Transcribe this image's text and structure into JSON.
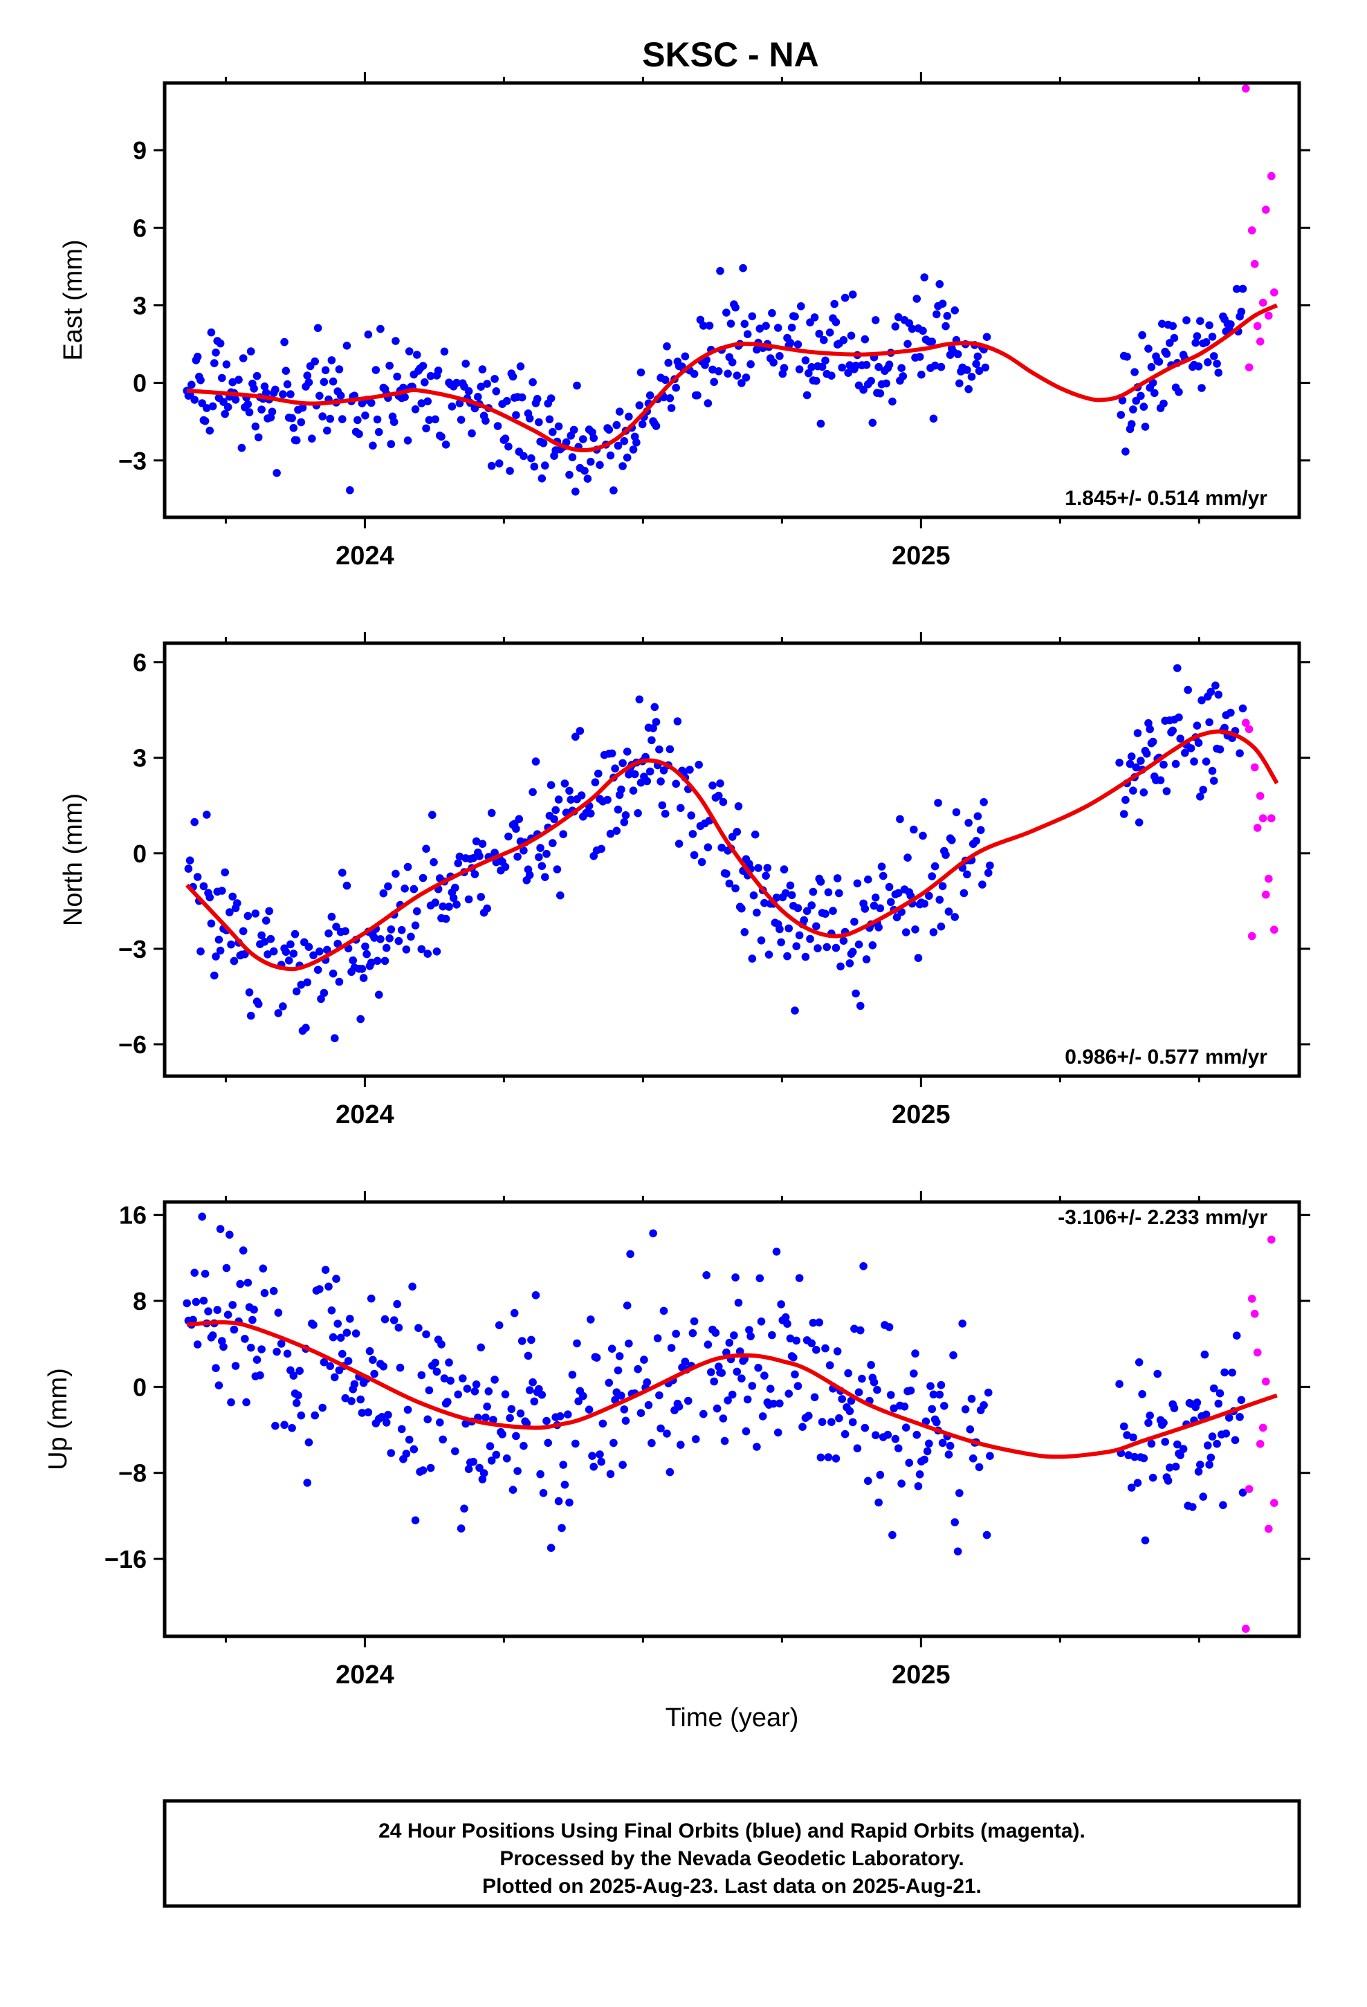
{
  "title": "SKSC - NA",
  "xlabel": "Time (year)",
  "colors": {
    "final": "#0000ff",
    "rapid": "#ff00ff",
    "trend": "#ee0000"
  },
  "footer": {
    "line1": "24 Hour Positions Using Final Orbits (blue) and Rapid Orbits (magenta).",
    "line2": "Processed by the Nevada Geodetic Laboratory.",
    "line3": "Plotted on 2025-Aug-23. Last data on 2025-Aug-21."
  },
  "chart_data": [
    {
      "type": "scatter",
      "panel": "east",
      "ylabel": "East (mm)",
      "rate": "1.845+/- 0.514 mm/yr",
      "xlim": [
        2023.64,
        2025.68
      ],
      "ylim": [
        -5.2,
        11.6
      ],
      "yticks": [
        -3,
        0,
        3,
        6,
        9
      ],
      "yticklabels": [
        "−3",
        "0",
        "3",
        "6",
        "9"
      ],
      "xticks": [
        2024,
        2025
      ],
      "xticklabels": [
        "2024",
        "2025"
      ],
      "minor_xticks": [
        2023.75,
        2024.25,
        2024.5,
        2024.75,
        2025.25,
        2025.5
      ],
      "rapid_x": [
        2025.584,
        2025.59,
        2025.595,
        2025.6,
        2025.605,
        2025.61,
        2025.615,
        2025.62,
        2025.625,
        2025.63,
        2025.635
      ],
      "rapid_y": [
        11.4,
        0.6,
        5.9,
        4.6,
        2.2,
        1.6,
        3.1,
        6.7,
        2.6,
        8.0,
        3.5
      ],
      "trend_x": [
        2023.68,
        2023.8,
        2023.9,
        2024.0,
        2024.06,
        2024.1,
        2024.2,
        2024.3,
        2024.35,
        2024.4,
        2024.45,
        2024.5,
        2024.55,
        2024.6,
        2024.65,
        2024.7,
        2024.8,
        2024.9,
        2025.0,
        2025.05,
        2025.1,
        2025.15,
        2025.2,
        2025.25,
        2025.3,
        2025.33,
        2025.36,
        2025.4,
        2025.45,
        2025.5,
        2025.55,
        2025.6,
        2025.64
      ],
      "trend_y": [
        -0.3,
        -0.5,
        -0.8,
        -0.6,
        -0.4,
        -0.3,
        -0.8,
        -1.8,
        -2.4,
        -2.6,
        -2.2,
        -1.2,
        0.0,
        0.9,
        1.4,
        1.5,
        1.2,
        1.1,
        1.3,
        1.5,
        1.5,
        1.1,
        0.4,
        -0.2,
        -0.6,
        -0.65,
        -0.5,
        0.0,
        0.6,
        1.1,
        1.8,
        2.6,
        3.0
      ]
    },
    {
      "type": "scatter",
      "panel": "north",
      "ylabel": "North (mm)",
      "rate": "0.986+/- 0.577 mm/yr",
      "xlim": [
        2023.64,
        2025.68
      ],
      "ylim": [
        -7.0,
        6.6
      ],
      "yticks": [
        -6,
        -3,
        0,
        3,
        6
      ],
      "yticklabels": [
        "−6",
        "−3",
        "0",
        "3",
        "6"
      ],
      "xticks": [
        2024,
        2025
      ],
      "xticklabels": [
        "2024",
        "2025"
      ],
      "minor_xticks": [
        2023.75,
        2024.25,
        2024.5,
        2024.75,
        2025.25,
        2025.5
      ],
      "rapid_x": [
        2025.584,
        2025.59,
        2025.595,
        2025.6,
        2025.605,
        2025.61,
        2025.615,
        2025.62,
        2025.625,
        2025.63,
        2025.635
      ],
      "rapid_y": [
        4.1,
        3.9,
        -2.6,
        2.7,
        0.8,
        1.8,
        1.1,
        -1.3,
        -0.8,
        1.1,
        -2.4
      ],
      "trend_x": [
        2023.68,
        2023.75,
        2023.8,
        2023.85,
        2023.9,
        2024.0,
        2024.1,
        2024.2,
        2024.3,
        2024.4,
        2024.45,
        2024.5,
        2024.55,
        2024.6,
        2024.65,
        2024.7,
        2024.75,
        2024.8,
        2024.85,
        2024.9,
        2025.0,
        2025.1,
        2025.2,
        2025.3,
        2025.4,
        2025.45,
        2025.5,
        2025.55,
        2025.6,
        2025.64
      ],
      "trend_y": [
        -1.0,
        -2.3,
        -3.2,
        -3.6,
        -3.5,
        -2.5,
        -1.3,
        -0.4,
        0.4,
        1.6,
        2.4,
        2.9,
        2.7,
        1.8,
        0.4,
        -0.8,
        -1.8,
        -2.4,
        -2.6,
        -2.3,
        -1.3,
        0.0,
        0.7,
        1.5,
        2.6,
        3.2,
        3.7,
        3.8,
        3.3,
        2.2
      ]
    },
    {
      "type": "scatter",
      "panel": "up",
      "ylabel": "Up (mm)",
      "rate": "-3.106+/- 2.233 mm/yr",
      "xlim": [
        2023.64,
        2025.68
      ],
      "ylim": [
        -23.2,
        17.2
      ],
      "yticks": [
        -16,
        -8,
        0,
        8,
        16
      ],
      "yticklabels": [
        "−16",
        "−8",
        "0",
        "8",
        "16"
      ],
      "xticks": [
        2024,
        2025
      ],
      "xticklabels": [
        "2024",
        "2025"
      ],
      "minor_xticks": [
        2023.75,
        2024.25,
        2024.5,
        2024.75,
        2025.25,
        2025.5
      ],
      "rapid_x": [
        2025.584,
        2025.59,
        2025.595,
        2025.6,
        2025.605,
        2025.61,
        2025.615,
        2025.62,
        2025.625,
        2025.63,
        2025.635
      ],
      "rapid_y": [
        -22.5,
        -9.5,
        8.2,
        6.8,
        3.2,
        -5.3,
        -3.8,
        0.5,
        -13.2,
        13.7,
        -10.8
      ],
      "trend_x": [
        2023.68,
        2023.75,
        2023.8,
        2023.9,
        2024.0,
        2024.1,
        2024.2,
        2024.3,
        2024.35,
        2024.4,
        2024.5,
        2024.6,
        2024.65,
        2024.7,
        2024.75,
        2024.8,
        2024.9,
        2025.0,
        2025.1,
        2025.2,
        2025.25,
        2025.3,
        2025.35,
        2025.4,
        2025.5,
        2025.6,
        2025.64
      ],
      "trend_y": [
        5.8,
        6.0,
        5.5,
        3.5,
        1.0,
        -1.5,
        -3.2,
        -3.8,
        -3.5,
        -2.8,
        -0.5,
        2.0,
        2.8,
        2.9,
        2.4,
        1.5,
        -1.5,
        -3.5,
        -5.2,
        -6.3,
        -6.5,
        -6.3,
        -5.9,
        -5.0,
        -3.3,
        -1.5,
        -0.8
      ]
    }
  ]
}
